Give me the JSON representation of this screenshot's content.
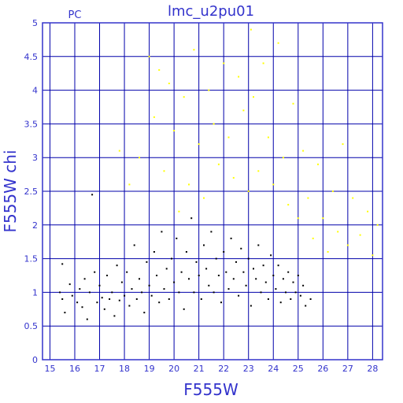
{
  "chart_data": {
    "type": "scatter",
    "title": "lmc_u2pu01",
    "corner_label": "PC",
    "xlabel": "F555W",
    "ylabel": "F555W chi",
    "xlim": [
      14.7,
      28.4
    ],
    "ylim": [
      0,
      5
    ],
    "x_ticks": [
      "15",
      "16",
      "17",
      "18",
      "19",
      "20",
      "21",
      "22",
      "23",
      "24",
      "25",
      "26",
      "27",
      "28"
    ],
    "y_ticks": [
      "0",
      "0.5",
      "1",
      "1.5",
      "2",
      "2.5",
      "3",
      "3.5",
      "4",
      "4.5",
      "5"
    ],
    "grid": true,
    "colors": {
      "axes": "#3333cc",
      "grid": "#0000aa",
      "series_black": "#000000",
      "series_yellow": "#ffff00"
    },
    "series": [
      {
        "color": "#000000",
        "points": [
          [
            15.4,
            1.0
          ],
          [
            15.5,
            0.9
          ],
          [
            15.5,
            1.42
          ],
          [
            15.6,
            0.7
          ],
          [
            15.8,
            1.12
          ],
          [
            15.9,
            0.95
          ],
          [
            16.1,
            0.85
          ],
          [
            16.2,
            1.05
          ],
          [
            16.3,
            0.78
          ],
          [
            16.4,
            1.2
          ],
          [
            16.5,
            0.6
          ],
          [
            16.6,
            1.0
          ],
          [
            16.7,
            2.45
          ],
          [
            16.8,
            1.3
          ],
          [
            16.9,
            0.85
          ],
          [
            17.0,
            1.1
          ],
          [
            17.1,
            0.92
          ],
          [
            17.2,
            0.75
          ],
          [
            17.3,
            1.25
          ],
          [
            17.4,
            0.9
          ],
          [
            17.5,
            1.0
          ],
          [
            17.6,
            0.65
          ],
          [
            17.7,
            1.4
          ],
          [
            17.8,
            0.88
          ],
          [
            17.9,
            1.15
          ],
          [
            18.0,
            0.95
          ],
          [
            18.1,
            1.3
          ],
          [
            18.2,
            0.8
          ],
          [
            18.3,
            1.05
          ],
          [
            18.4,
            1.7
          ],
          [
            18.5,
            0.9
          ],
          [
            18.6,
            1.2
          ],
          [
            18.7,
            1.0
          ],
          [
            18.8,
            0.7
          ],
          [
            18.9,
            1.45
          ],
          [
            19.0,
            1.1
          ],
          [
            19.1,
            0.95
          ],
          [
            19.2,
            1.6
          ],
          [
            19.3,
            1.25
          ],
          [
            19.4,
            0.85
          ],
          [
            19.5,
            1.9
          ],
          [
            19.6,
            1.05
          ],
          [
            19.7,
            1.35
          ],
          [
            19.8,
            0.9
          ],
          [
            19.9,
            1.5
          ],
          [
            20.0,
            1.15
          ],
          [
            20.1,
            1.8
          ],
          [
            20.2,
            1.0
          ],
          [
            20.3,
            1.3
          ],
          [
            20.4,
            0.75
          ],
          [
            20.5,
            1.6
          ],
          [
            20.6,
            1.2
          ],
          [
            20.7,
            2.1
          ],
          [
            20.8,
            1.0
          ],
          [
            20.9,
            1.45
          ],
          [
            21.0,
            1.25
          ],
          [
            21.1,
            0.9
          ],
          [
            21.2,
            1.7
          ],
          [
            21.3,
            1.35
          ],
          [
            21.4,
            1.1
          ],
          [
            21.5,
            1.9
          ],
          [
            21.6,
            1.0
          ],
          [
            21.7,
            1.5
          ],
          [
            21.8,
            1.25
          ],
          [
            21.9,
            0.85
          ],
          [
            22.0,
            1.6
          ],
          [
            22.1,
            1.3
          ],
          [
            22.2,
            1.05
          ],
          [
            22.3,
            1.8
          ],
          [
            22.4,
            1.2
          ],
          [
            22.5,
            1.45
          ],
          [
            22.6,
            0.95
          ],
          [
            22.7,
            1.65
          ],
          [
            22.8,
            1.3
          ],
          [
            22.9,
            1.1
          ],
          [
            23.0,
            1.5
          ],
          [
            23.1,
            0.8
          ],
          [
            23.2,
            1.35
          ],
          [
            23.3,
            1.2
          ],
          [
            23.4,
            1.7
          ],
          [
            23.5,
            1.0
          ],
          [
            23.6,
            1.4
          ],
          [
            23.7,
            1.15
          ],
          [
            23.8,
            0.9
          ],
          [
            23.9,
            1.55
          ],
          [
            24.0,
            1.25
          ],
          [
            24.1,
            1.05
          ],
          [
            24.2,
            1.4
          ],
          [
            24.3,
            0.85
          ],
          [
            24.4,
            1.2
          ],
          [
            24.5,
            1.0
          ],
          [
            24.6,
            1.3
          ],
          [
            24.7,
            0.9
          ],
          [
            24.8,
            1.15
          ],
          [
            24.9,
            1.0
          ],
          [
            25.0,
            1.25
          ],
          [
            25.1,
            0.95
          ],
          [
            25.2,
            1.1
          ],
          [
            25.3,
            0.8
          ],
          [
            25.5,
            0.9
          ]
        ]
      },
      {
        "color": "#ffff00",
        "points": [
          [
            17.8,
            3.1
          ],
          [
            18.2,
            2.6
          ],
          [
            18.6,
            3.0
          ],
          [
            19.0,
            4.5
          ],
          [
            19.2,
            3.6
          ],
          [
            19.4,
            4.3
          ],
          [
            19.6,
            2.8
          ],
          [
            19.8,
            4.1
          ],
          [
            20.0,
            3.4
          ],
          [
            20.2,
            2.2
          ],
          [
            20.4,
            3.9
          ],
          [
            20.6,
            2.6
          ],
          [
            20.8,
            4.6
          ],
          [
            21.0,
            3.2
          ],
          [
            21.2,
            2.4
          ],
          [
            21.4,
            4.0
          ],
          [
            21.6,
            3.5
          ],
          [
            21.8,
            2.9
          ],
          [
            22.0,
            4.4
          ],
          [
            22.2,
            3.3
          ],
          [
            22.4,
            2.7
          ],
          [
            22.6,
            4.2
          ],
          [
            22.8,
            3.7
          ],
          [
            23.0,
            2.5
          ],
          [
            23.1,
            4.9
          ],
          [
            23.2,
            3.9
          ],
          [
            23.4,
            2.8
          ],
          [
            23.6,
            4.4
          ],
          [
            23.8,
            3.3
          ],
          [
            24.0,
            2.6
          ],
          [
            24.2,
            4.7
          ],
          [
            24.4,
            3.0
          ],
          [
            24.6,
            2.3
          ],
          [
            24.8,
            3.8
          ],
          [
            25.0,
            2.1
          ],
          [
            25.2,
            3.1
          ],
          [
            25.4,
            2.4
          ],
          [
            25.6,
            1.8
          ],
          [
            25.8,
            2.9
          ],
          [
            26.0,
            2.1
          ],
          [
            26.2,
            1.6
          ],
          [
            26.4,
            2.5
          ],
          [
            26.6,
            1.9
          ],
          [
            26.8,
            3.2
          ],
          [
            27.0,
            1.7
          ],
          [
            27.2,
            2.4
          ],
          [
            27.5,
            1.85
          ],
          [
            27.8,
            2.2
          ],
          [
            28.0,
            1.55
          ],
          [
            28.2,
            2.0
          ]
        ]
      }
    ]
  }
}
